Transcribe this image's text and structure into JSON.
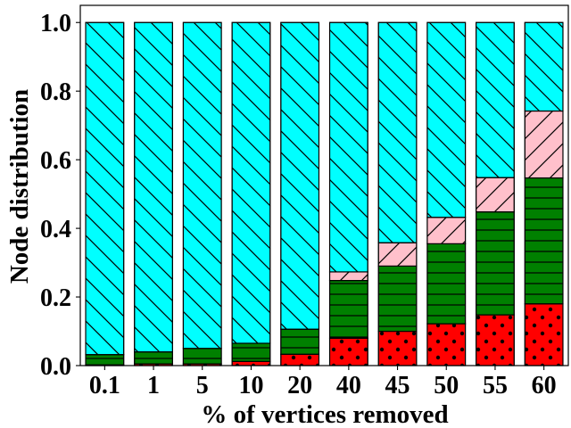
{
  "chart_data": {
    "type": "bar",
    "stacked": true,
    "xlabel": "% of vertices removed",
    "ylabel": "Node distribution",
    "ylim": [
      0,
      1.05
    ],
    "yticks": [
      "0.0",
      "0.2",
      "0.4",
      "0.6",
      "0.8",
      "1.0"
    ],
    "grid": false,
    "categories": [
      "0.1",
      "1",
      "5",
      "10",
      "20",
      "40",
      "45",
      "50",
      "55",
      "60"
    ],
    "series": [
      {
        "color": "#ff0000",
        "hatch": "dots",
        "values": [
          0.002,
          0.005,
          0.005,
          0.012,
          0.033,
          0.08,
          0.1,
          0.122,
          0.148,
          0.18
        ]
      },
      {
        "color": "#008000",
        "hatch": "horizontal",
        "values": [
          0.03,
          0.035,
          0.045,
          0.053,
          0.073,
          0.168,
          0.19,
          0.233,
          0.3,
          0.367
        ]
      },
      {
        "color": "#ffc0cb",
        "hatch": "forward-diagonal",
        "values": [
          0,
          0,
          0,
          0,
          0,
          0.025,
          0.068,
          0.077,
          0.1,
          0.195
        ]
      },
      {
        "color": "#00ffff",
        "hatch": "back-diagonal",
        "values": [
          0.968,
          0.96,
          0.95,
          0.935,
          0.894,
          0.727,
          0.642,
          0.568,
          0.452,
          0.258
        ]
      }
    ]
  }
}
